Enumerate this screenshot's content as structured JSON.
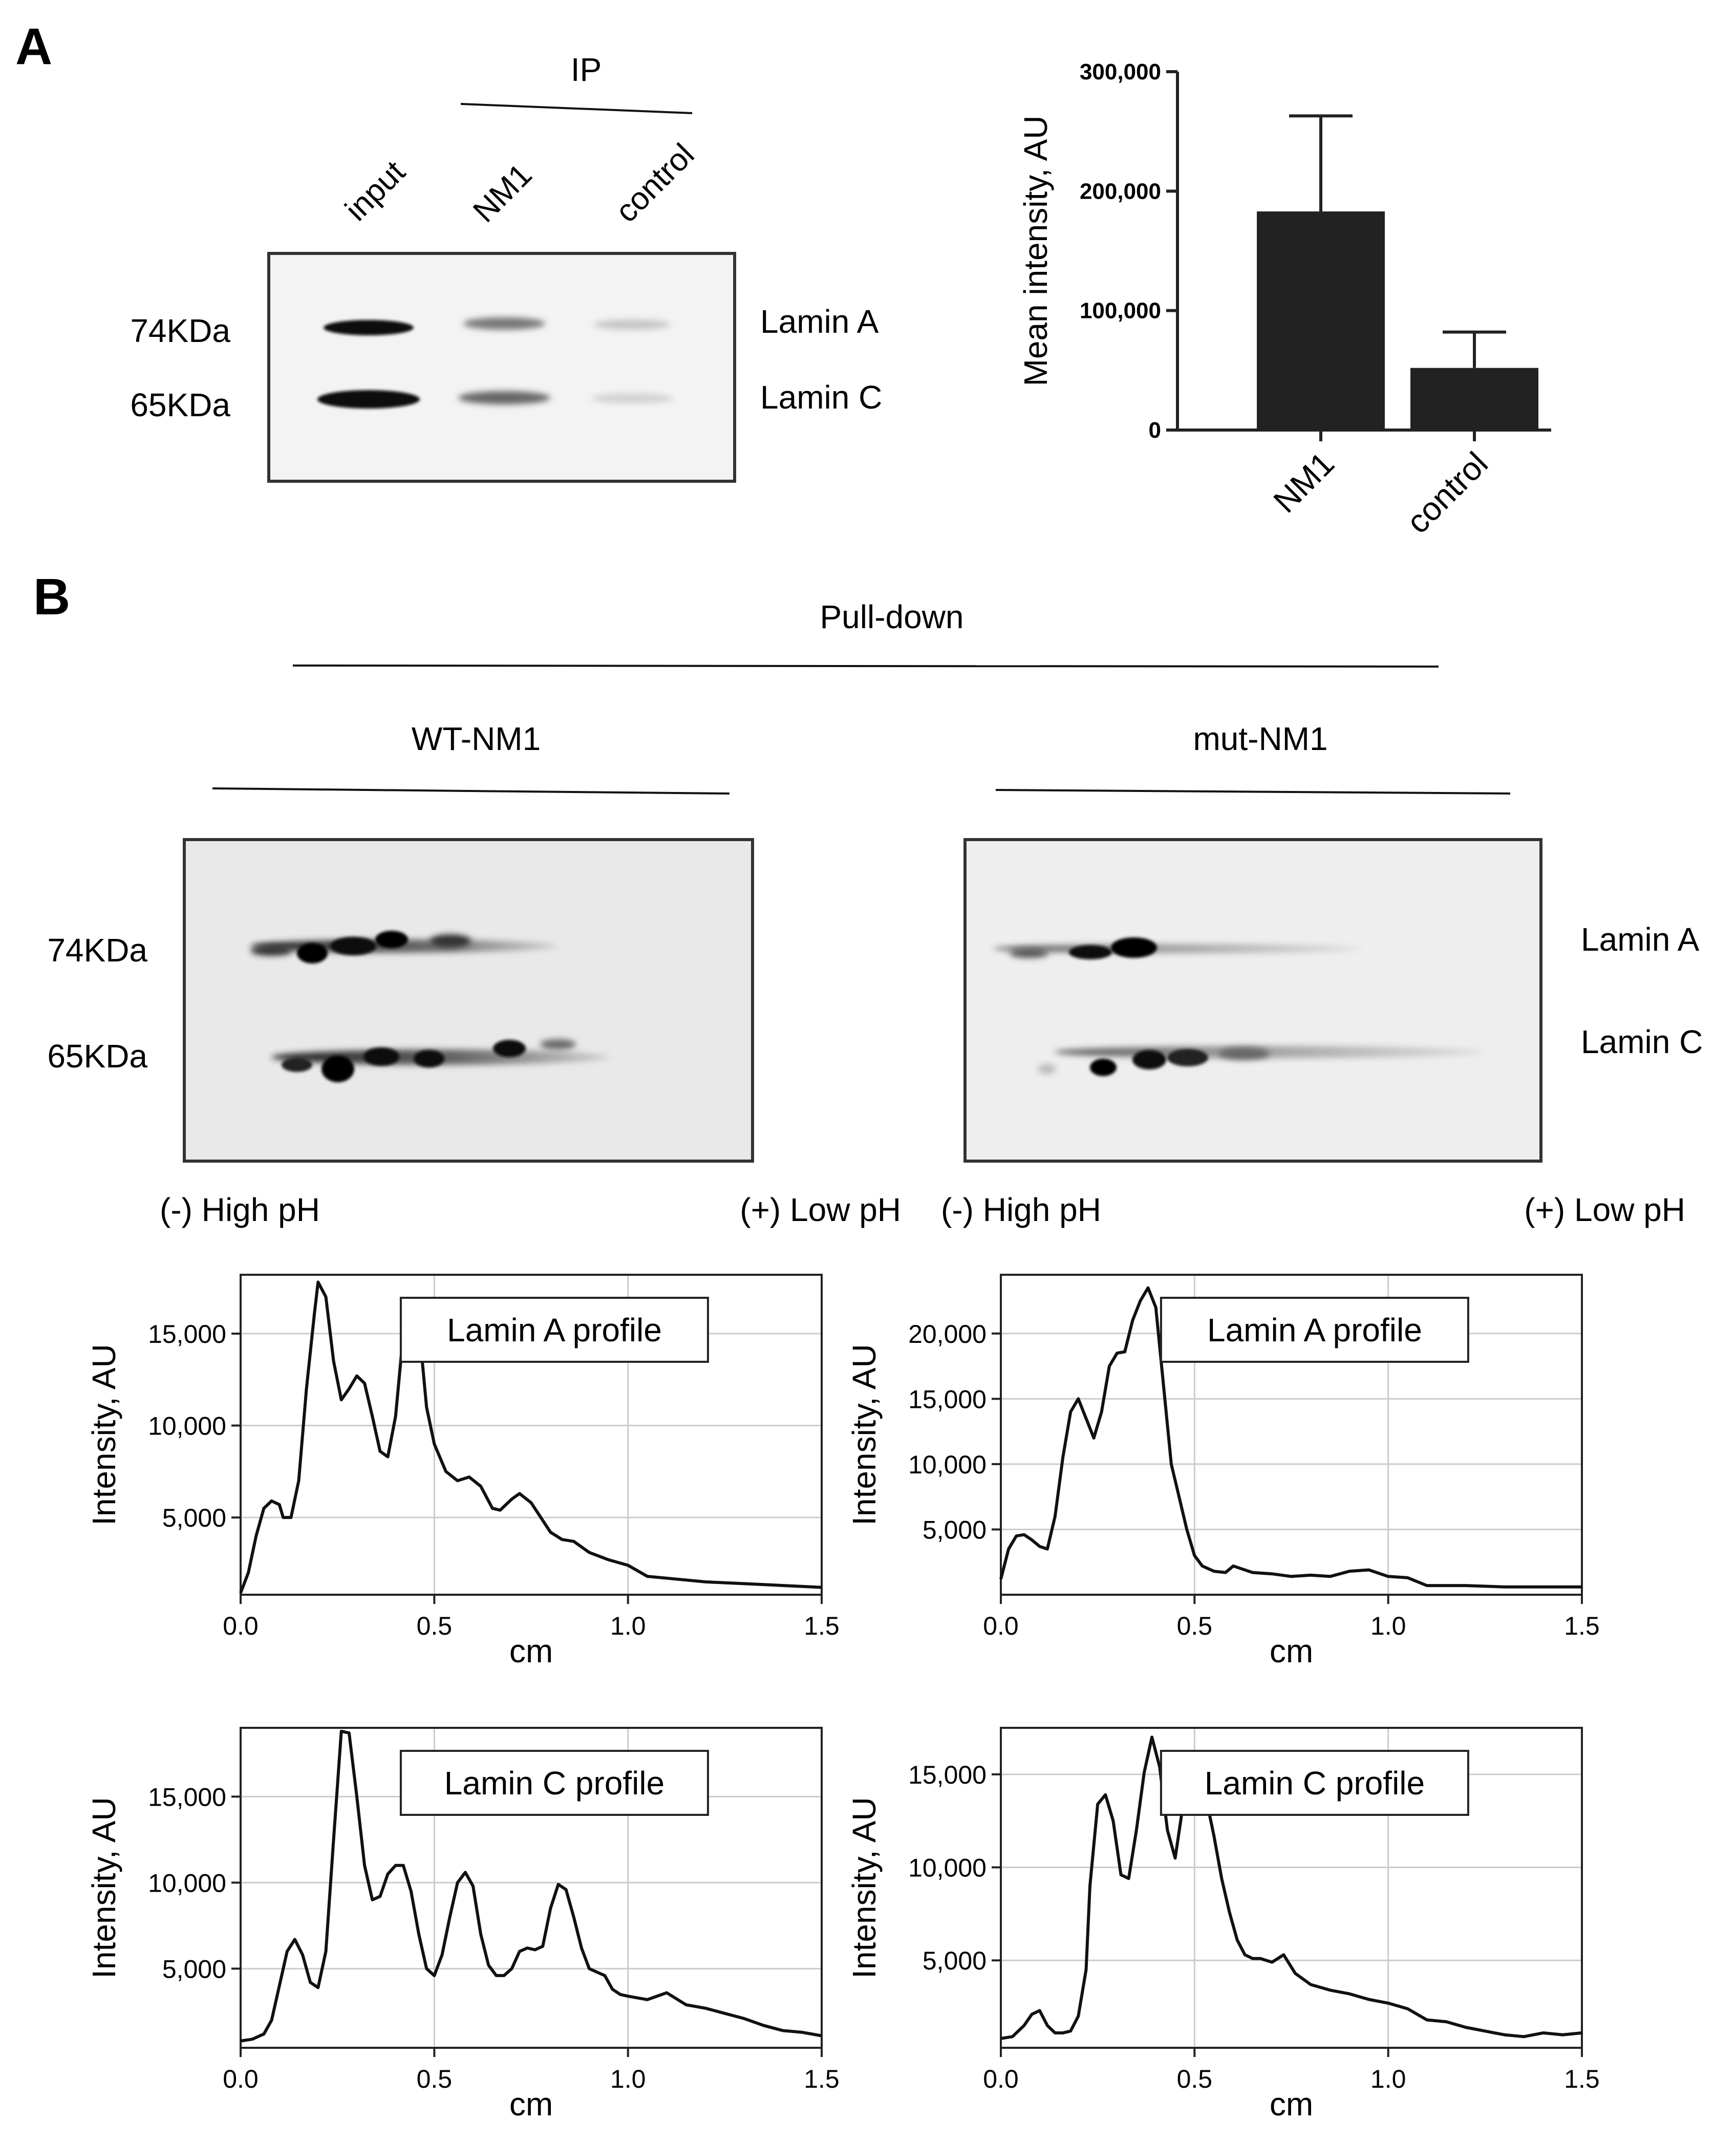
{
  "panel_a": {
    "label": "A",
    "ip_label": "IP",
    "lanes": [
      "input",
      "NM1",
      "control"
    ],
    "mw_top": "74KDa",
    "mw_bottom": "65KDa",
    "band_top": "Lamin A",
    "band_bottom": "Lamin C"
  },
  "panel_b": {
    "label": "B",
    "pulldown_label": "Pull-down",
    "wt_label": "WT-NM1",
    "mut_label": "mut-NM1",
    "mw_top": "74KDa",
    "mw_bottom": "65KDa",
    "band_top": "Lamin A",
    "band_bottom": "Lamin C",
    "ph_left": "(-) High pH",
    "ph_right": "(+) Low pH"
  },
  "chart_data": [
    {
      "id": "bar",
      "type": "bar",
      "categories": [
        "NM1",
        "control"
      ],
      "values": [
        183000,
        52000
      ],
      "errors": [
        80000,
        30000
      ],
      "ylabel": "Mean intensity, AU",
      "ylim": [
        0,
        300000
      ],
      "yticks": [
        0,
        100000,
        200000,
        300000
      ],
      "yticklabels": [
        "0",
        "100,000",
        "200,000",
        "300,000"
      ],
      "color": "#222222"
    },
    {
      "id": "wt_a",
      "type": "line",
      "annotation": "Lamin A profile",
      "xlabel": "cm",
      "ylabel": "Intensity, AU",
      "xlim": [
        0,
        1.5
      ],
      "ylim": [
        800,
        18200
      ],
      "xticks": [
        0,
        0.5,
        1.0,
        1.5
      ],
      "xticklabels": [
        "0.0",
        "0.5",
        "1.0",
        "1.5"
      ],
      "yticks": [
        5000,
        10000,
        15000
      ],
      "yticklabels": [
        "5,000",
        "10,000",
        "15,000"
      ],
      "grid": true,
      "x": [
        0,
        0.02,
        0.04,
        0.06,
        0.08,
        0.1,
        0.11,
        0.13,
        0.15,
        0.17,
        0.19,
        0.2,
        0.22,
        0.24,
        0.26,
        0.28,
        0.3,
        0.32,
        0.34,
        0.36,
        0.38,
        0.4,
        0.42,
        0.44,
        0.46,
        0.48,
        0.5,
        0.53,
        0.56,
        0.59,
        0.62,
        0.65,
        0.67,
        0.7,
        0.72,
        0.75,
        0.8,
        0.83,
        0.86,
        0.9,
        0.95,
        1.0,
        1.05,
        1.1,
        1.2,
        1.3,
        1.4,
        1.5
      ],
      "y": [
        900,
        2000,
        4000,
        5500,
        5900,
        5700,
        5000,
        5000,
        7000,
        12000,
        16000,
        17800,
        17000,
        13500,
        11400,
        12000,
        12700,
        12300,
        10500,
        8600,
        8300,
        10500,
        15000,
        16200,
        15500,
        11000,
        9000,
        7500,
        7000,
        7200,
        6700,
        5500,
        5400,
        6000,
        6300,
        5800,
        4200,
        3800,
        3700,
        3100,
        2700,
        2400,
        1800,
        1700,
        1500,
        1400,
        1300,
        1200
      ]
    },
    {
      "id": "mut_a",
      "type": "line",
      "annotation": "Lamin A profile",
      "xlabel": "cm",
      "ylabel": "Intensity, AU",
      "xlim": [
        0,
        1.5
      ],
      "ylim": [
        0,
        24500
      ],
      "xticks": [
        0,
        0.5,
        1.0,
        1.5
      ],
      "xticklabels": [
        "0.0",
        "0.5",
        "1.0",
        "1.5"
      ],
      "yticks": [
        5000,
        10000,
        15000,
        20000
      ],
      "yticklabels": [
        "5,000",
        "10,000",
        "15,000",
        "20,000"
      ],
      "grid": true,
      "x": [
        0,
        0.02,
        0.04,
        0.06,
        0.08,
        0.1,
        0.12,
        0.14,
        0.16,
        0.18,
        0.2,
        0.22,
        0.24,
        0.26,
        0.28,
        0.3,
        0.32,
        0.34,
        0.36,
        0.38,
        0.4,
        0.42,
        0.44,
        0.46,
        0.48,
        0.5,
        0.52,
        0.55,
        0.58,
        0.6,
        0.65,
        0.7,
        0.75,
        0.8,
        0.85,
        0.9,
        0.95,
        1.0,
        1.05,
        1.1,
        1.2,
        1.3,
        1.4,
        1.5
      ],
      "y": [
        1200,
        3500,
        4500,
        4600,
        4200,
        3700,
        3500,
        6000,
        10500,
        14000,
        15000,
        13500,
        12000,
        14000,
        17500,
        18500,
        18600,
        21000,
        22500,
        23500,
        22000,
        16000,
        10000,
        7500,
        5000,
        3000,
        2200,
        1800,
        1700,
        2200,
        1700,
        1600,
        1400,
        1500,
        1400,
        1800,
        1900,
        1400,
        1300,
        700,
        700,
        600,
        600,
        600
      ]
    },
    {
      "id": "wt_c",
      "type": "line",
      "annotation": "Lamin C profile",
      "xlabel": "cm",
      "ylabel": "Intensity, AU",
      "xlim": [
        0,
        1.5
      ],
      "ylim": [
        400,
        19000
      ],
      "xticks": [
        0,
        0.5,
        1.0,
        1.5
      ],
      "xticklabels": [
        "0.0",
        "0.5",
        "1.0",
        "1.5"
      ],
      "yticks": [
        5000,
        10000,
        15000
      ],
      "yticklabels": [
        "5,000",
        "10,000",
        "15,000"
      ],
      "grid": true,
      "x": [
        0,
        0.03,
        0.06,
        0.08,
        0.1,
        0.12,
        0.14,
        0.16,
        0.18,
        0.2,
        0.22,
        0.24,
        0.26,
        0.28,
        0.3,
        0.32,
        0.34,
        0.36,
        0.38,
        0.4,
        0.42,
        0.44,
        0.46,
        0.48,
        0.5,
        0.52,
        0.54,
        0.56,
        0.58,
        0.6,
        0.62,
        0.64,
        0.66,
        0.68,
        0.7,
        0.72,
        0.74,
        0.76,
        0.78,
        0.8,
        0.82,
        0.84,
        0.86,
        0.88,
        0.9,
        0.92,
        0.94,
        0.96,
        0.98,
        1.0,
        1.05,
        1.1,
        1.15,
        1.2,
        1.25,
        1.3,
        1.35,
        1.4,
        1.45,
        1.5
      ],
      "y": [
        800,
        900,
        1200,
        2000,
        4000,
        6000,
        6700,
        5800,
        4200,
        3900,
        6000,
        12500,
        18800,
        18700,
        15000,
        11000,
        9000,
        9200,
        10500,
        11000,
        11000,
        9500,
        7000,
        5000,
        4600,
        5800,
        8000,
        10000,
        10600,
        9800,
        7000,
        5200,
        4600,
        4600,
        5000,
        6000,
        6200,
        6100,
        6300,
        8500,
        9900,
        9600,
        8000,
        6200,
        5000,
        4800,
        4600,
        3800,
        3500,
        3400,
        3200,
        3600,
        2900,
        2700,
        2400,
        2100,
        1700,
        1400,
        1300,
        1100
      ]
    },
    {
      "id": "mut_c",
      "type": "line",
      "annotation": "Lamin C profile",
      "xlabel": "cm",
      "ylabel": "Intensity, AU",
      "xlim": [
        0,
        1.5
      ],
      "ylim": [
        300,
        17500
      ],
      "xticks": [
        0,
        0.5,
        1.0,
        1.5
      ],
      "xticklabels": [
        "0.0",
        "0.5",
        "1.0",
        "1.5"
      ],
      "yticks": [
        5000,
        10000,
        15000
      ],
      "yticklabels": [
        "5,000",
        "10,000",
        "15,000"
      ],
      "grid": true,
      "x": [
        0,
        0.03,
        0.06,
        0.08,
        0.1,
        0.12,
        0.14,
        0.16,
        0.18,
        0.2,
        0.22,
        0.23,
        0.25,
        0.27,
        0.29,
        0.31,
        0.33,
        0.35,
        0.37,
        0.39,
        0.41,
        0.43,
        0.45,
        0.47,
        0.49,
        0.51,
        0.53,
        0.55,
        0.57,
        0.59,
        0.61,
        0.63,
        0.65,
        0.67,
        0.7,
        0.73,
        0.76,
        0.8,
        0.85,
        0.9,
        0.95,
        1.0,
        1.05,
        1.1,
        1.15,
        1.2,
        1.25,
        1.3,
        1.35,
        1.4,
        1.45,
        1.5
      ],
      "y": [
        800,
        900,
        1500,
        2100,
        2300,
        1500,
        1100,
        1100,
        1200,
        2000,
        4500,
        9000,
        13400,
        13900,
        12500,
        9600,
        9400,
        12000,
        15100,
        17000,
        15400,
        12000,
        10500,
        13300,
        14900,
        14700,
        13700,
        11700,
        9400,
        7600,
        6100,
        5300,
        5100,
        5100,
        4900,
        5300,
        4300,
        3700,
        3400,
        3200,
        2900,
        2700,
        2400,
        1800,
        1700,
        1400,
        1200,
        1000,
        900,
        1100,
        1000,
        1100
      ]
    }
  ]
}
